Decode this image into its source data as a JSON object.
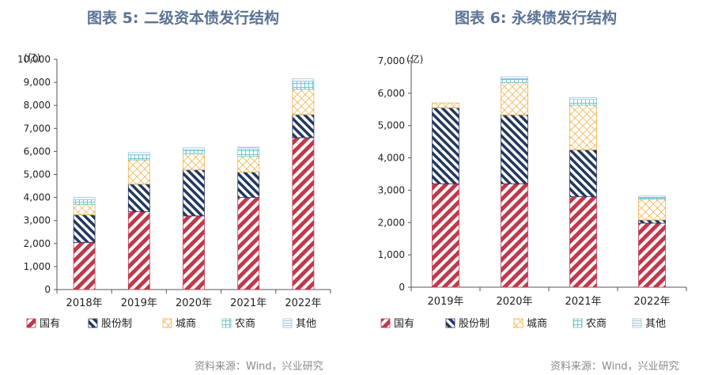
{
  "charts": [
    {
      "title": "图表 5:  二级资本债发行结构",
      "source": "资料来源：Wind，兴业研究",
      "unit_label": "(亿)"
    },
    {
      "title": "图表 6:  永续债发行结构",
      "source": "资料来源：Wind，兴业研究",
      "unit_label": "(亿)"
    }
  ],
  "colors": {
    "国有": "#c0394b",
    "股份制": "#22375e",
    "城商": "#f2b04a",
    "农商": "#6cc7d4",
    "其他": "#9cc2e0"
  },
  "chart_data": [
    {
      "type": "bar",
      "stacked": true,
      "title": "图表 5:  二级资本债发行结构",
      "ylabel": "(亿)",
      "ylim": [
        0,
        10000
      ],
      "yticks": [
        0,
        1000,
        2000,
        3000,
        4000,
        5000,
        6000,
        7000,
        8000,
        9000,
        10000
      ],
      "ytick_labels": [
        "0",
        "1,000",
        "2,000",
        "3,000",
        "4,000",
        "5,000",
        "6,000",
        "7,000",
        "8,000",
        "9,000",
        "10,000"
      ],
      "categories": [
        "2018年",
        "2019年",
        "2020年",
        "2021年",
        "2022年"
      ],
      "legend_position": "bottom",
      "series": [
        {
          "name": "国有",
          "values": [
            2050,
            3380,
            3200,
            4000,
            6600
          ]
        },
        {
          "name": "股份制",
          "values": [
            1200,
            1200,
            2000,
            1100,
            1000
          ]
        },
        {
          "name": "城商",
          "values": [
            450,
            1050,
            700,
            680,
            1100
          ]
        },
        {
          "name": "农商",
          "values": [
            200,
            220,
            180,
            320,
            350
          ]
        },
        {
          "name": "其他",
          "values": [
            100,
            100,
            80,
            80,
            100
          ]
        }
      ]
    },
    {
      "type": "bar",
      "stacked": true,
      "title": "图表 6:  永续债发行结构",
      "ylabel": "(亿)",
      "ylim": [
        0,
        7000
      ],
      "yticks": [
        0,
        1000,
        2000,
        3000,
        4000,
        5000,
        6000,
        7000
      ],
      "ytick_labels": [
        "0",
        "1,000",
        "2,000",
        "3,000",
        "4,000",
        "5,000",
        "6,000",
        "7,000"
      ],
      "categories": [
        "2019年",
        "2020年",
        "2021年",
        "2022年"
      ],
      "legend_position": "bottom",
      "series": [
        {
          "name": "国有",
          "values": [
            3200,
            3200,
            2800,
            1980
          ]
        },
        {
          "name": "股份制",
          "values": [
            2350,
            2130,
            1450,
            100
          ]
        },
        {
          "name": "城商",
          "values": [
            150,
            1000,
            1380,
            640
          ]
        },
        {
          "name": "农商",
          "values": [
            0,
            120,
            180,
            60
          ]
        },
        {
          "name": "其他",
          "values": [
            0,
            60,
            50,
            40
          ]
        }
      ]
    }
  ]
}
